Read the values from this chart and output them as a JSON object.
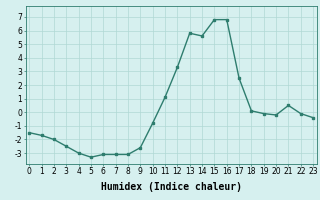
{
  "x": [
    0,
    1,
    2,
    3,
    4,
    5,
    6,
    7,
    8,
    9,
    10,
    11,
    12,
    13,
    14,
    15,
    16,
    17,
    18,
    19,
    20,
    21,
    22,
    23
  ],
  "y": [
    -1.5,
    -1.7,
    -2.0,
    -2.5,
    -3.0,
    -3.3,
    -3.1,
    -3.1,
    -3.1,
    -2.6,
    -0.8,
    1.1,
    3.3,
    5.8,
    5.6,
    6.8,
    6.8,
    2.5,
    0.1,
    -0.1,
    -0.2,
    0.5,
    -0.1,
    -0.4
  ],
  "xlabel": "Humidex (Indice chaleur)",
  "ylim": [
    -3.8,
    7.8
  ],
  "xlim": [
    -0.3,
    23.3
  ],
  "yticks": [
    -3,
    -2,
    -1,
    0,
    1,
    2,
    3,
    4,
    5,
    6,
    7
  ],
  "xticks": [
    0,
    1,
    2,
    3,
    4,
    5,
    6,
    7,
    8,
    9,
    10,
    11,
    12,
    13,
    14,
    15,
    16,
    17,
    18,
    19,
    20,
    21,
    22,
    23
  ],
  "xtick_labels": [
    "0",
    "1",
    "2",
    "3",
    "4",
    "5",
    "6",
    "7",
    "8",
    "9",
    "10",
    "11",
    "12",
    "13",
    "14",
    "15",
    "16",
    "17",
    "18",
    "19",
    "20",
    "21",
    "22",
    "23"
  ],
  "line_color": "#2e7d6e",
  "marker": "s",
  "marker_size": 1.8,
  "bg_color": "#d6f0ef",
  "grid_color": "#b0d8d4",
  "xlabel_fontsize": 7,
  "tick_fontsize": 5.5,
  "line_width": 1.0
}
